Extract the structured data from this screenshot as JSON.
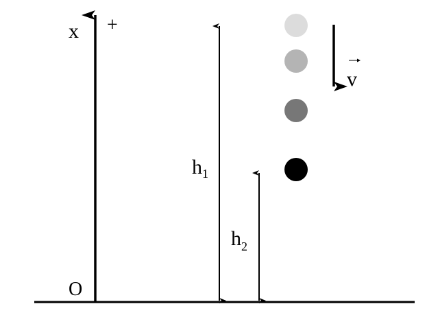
{
  "labels": {
    "axis": "x",
    "positive": "+",
    "origin": "O",
    "h1_base": "h",
    "h1_sub": "1",
    "h2_base": "h",
    "h2_sub": "2",
    "velocity": "v"
  },
  "balls": [
    {
      "color": "#dcdcdc"
    },
    {
      "color": "#b4b4b4"
    },
    {
      "color": "#777777"
    },
    {
      "color": "#000000"
    }
  ]
}
